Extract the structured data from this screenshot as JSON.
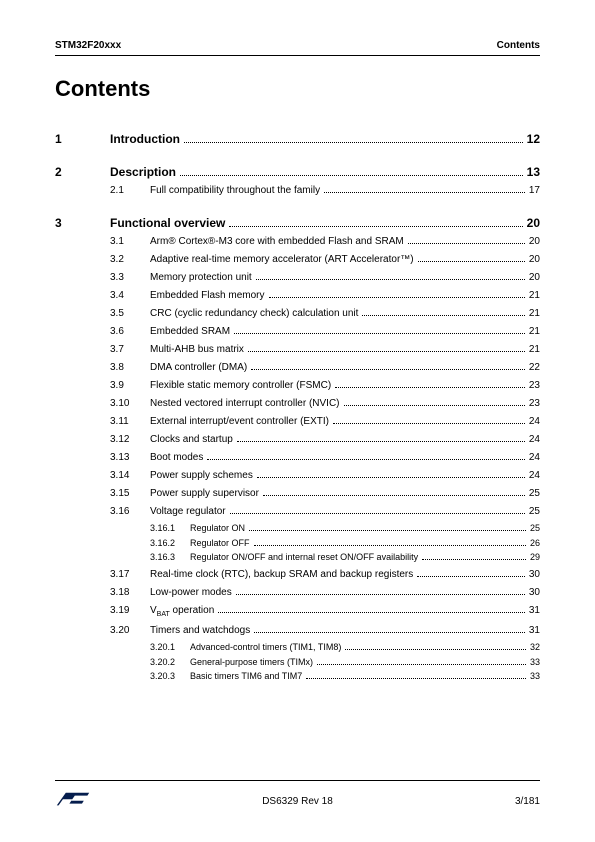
{
  "header": {
    "left": "STM32F20xxx",
    "right": "Contents"
  },
  "title": "Contents",
  "sections": [
    {
      "num": "1",
      "title": "Introduction",
      "page": "12",
      "subs": []
    },
    {
      "num": "2",
      "title": "Description",
      "page": "13",
      "subs": [
        {
          "num": "2.1",
          "title": "Full compatibility throughout the family",
          "page": "17"
        }
      ]
    },
    {
      "num": "3",
      "title": "Functional overview",
      "page": "20",
      "subs": [
        {
          "num": "3.1",
          "title": "Arm® Cortex®-M3 core with embedded Flash and SRAM",
          "page": "20"
        },
        {
          "num": "3.2",
          "title": "Adaptive real-time memory accelerator (ART Accelerator™)",
          "page": "20"
        },
        {
          "num": "3.3",
          "title": "Memory protection unit",
          "page": "20"
        },
        {
          "num": "3.4",
          "title": "Embedded Flash memory",
          "page": "21"
        },
        {
          "num": "3.5",
          "title": "CRC (cyclic redundancy check) calculation unit",
          "page": "21"
        },
        {
          "num": "3.6",
          "title": "Embedded SRAM",
          "page": "21"
        },
        {
          "num": "3.7",
          "title": "Multi-AHB bus matrix",
          "page": "21"
        },
        {
          "num": "3.8",
          "title": "DMA controller (DMA)",
          "page": "22"
        },
        {
          "num": "3.9",
          "title": "Flexible static memory controller (FSMC)",
          "page": "23"
        },
        {
          "num": "3.10",
          "title": "Nested vectored interrupt controller (NVIC)",
          "page": "23"
        },
        {
          "num": "3.11",
          "title": "External interrupt/event controller (EXTI)",
          "page": "24"
        },
        {
          "num": "3.12",
          "title": "Clocks and startup",
          "page": "24"
        },
        {
          "num": "3.13",
          "title": "Boot modes",
          "page": "24"
        },
        {
          "num": "3.14",
          "title": "Power supply schemes",
          "page": "24"
        },
        {
          "num": "3.15",
          "title": "Power supply supervisor",
          "page": "25"
        },
        {
          "num": "3.16",
          "title": "Voltage regulator",
          "page": "25",
          "subsubs": [
            {
              "num": "3.16.1",
              "title": "Regulator ON",
              "page": "25"
            },
            {
              "num": "3.16.2",
              "title": "Regulator OFF",
              "page": "26"
            },
            {
              "num": "3.16.3",
              "title": "Regulator ON/OFF and internal reset ON/OFF availability",
              "page": "29"
            }
          ]
        },
        {
          "num": "3.17",
          "title": "Real-time clock (RTC), backup SRAM and backup registers",
          "page": "30"
        },
        {
          "num": "3.18",
          "title": "Low-power modes",
          "page": "30"
        },
        {
          "num": "3.19",
          "title_html": "V<sub>BAT</sub> operation",
          "page": "31"
        },
        {
          "num": "3.20",
          "title": "Timers and watchdogs",
          "page": "31",
          "subsubs": [
            {
              "num": "3.20.1",
              "title": "Advanced-control timers (TIM1, TIM8)",
              "page": "32"
            },
            {
              "num": "3.20.2",
              "title": "General-purpose timers (TIMx)",
              "page": "33"
            },
            {
              "num": "3.20.3",
              "title": "Basic timers TIM6 and TIM7",
              "page": "33"
            }
          ]
        }
      ]
    }
  ],
  "footer": {
    "revision": "DS6329 Rev 18",
    "pagenum": "3/181"
  }
}
